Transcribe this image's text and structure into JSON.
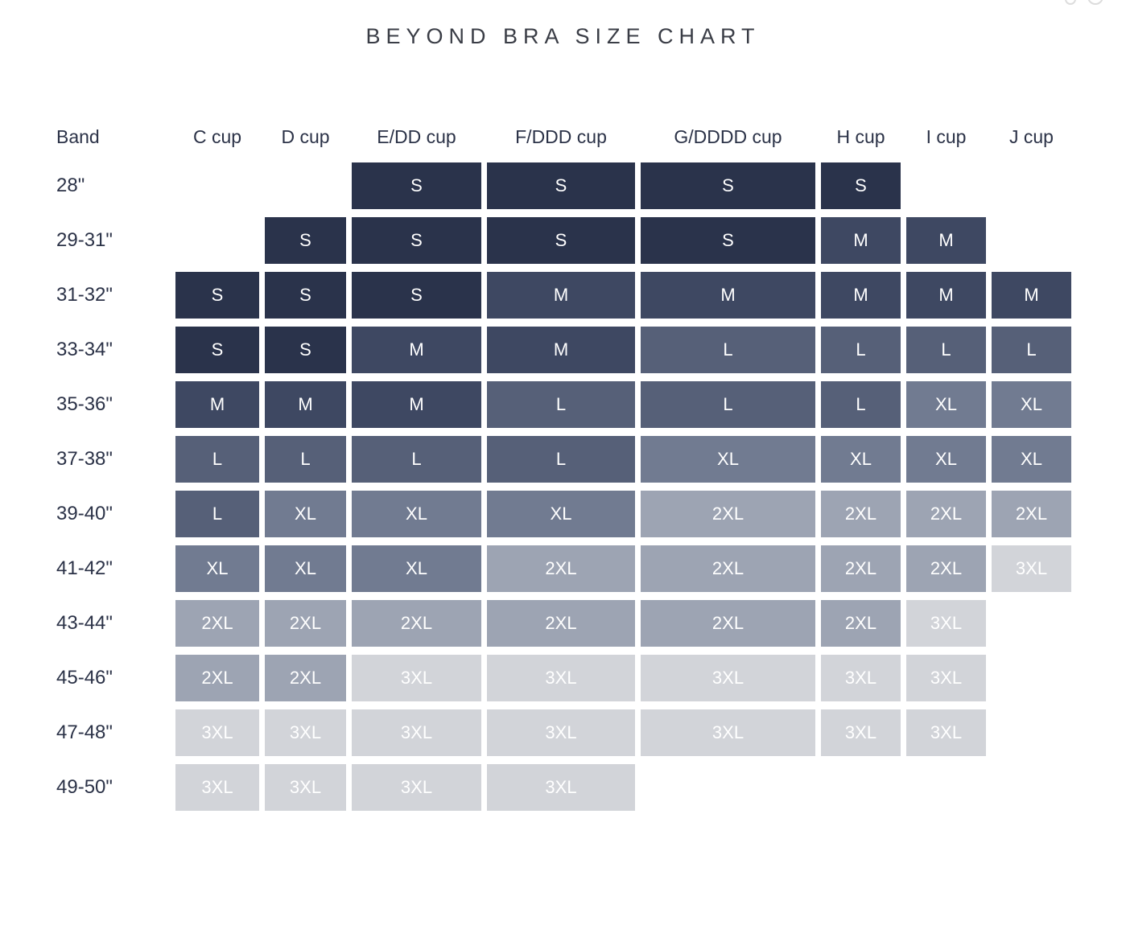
{
  "chart_data": {
    "type": "table",
    "title": "BEYOND BRA SIZE CHART",
    "columns": [
      "Band",
      "C cup",
      "D cup",
      "E/DD cup",
      "F/DDD cup",
      "G/DDDD cup",
      "H cup",
      "I cup",
      "J cup"
    ],
    "rows": [
      [
        "28\"",
        "",
        "",
        "S",
        "S",
        "S",
        "S",
        "",
        ""
      ],
      [
        "29-31\"",
        "",
        "S",
        "S",
        "S",
        "S",
        "M",
        "M",
        ""
      ],
      [
        "31-32\"",
        "S",
        "S",
        "S",
        "M",
        "M",
        "M",
        "M",
        "M"
      ],
      [
        "33-34\"",
        "S",
        "S",
        "M",
        "M",
        "L",
        "L",
        "L",
        "L"
      ],
      [
        "35-36\"",
        "M",
        "M",
        "M",
        "L",
        "L",
        "L",
        "XL",
        "XL"
      ],
      [
        "37-38\"",
        "L",
        "L",
        "L",
        "L",
        "XL",
        "XL",
        "XL",
        "XL"
      ],
      [
        "39-40\"",
        "L",
        "XL",
        "XL",
        "XL",
        "2XL",
        "2XL",
        "2XL",
        "2XL"
      ],
      [
        "41-42\"",
        "XL",
        "XL",
        "XL",
        "2XL",
        "2XL",
        "2XL",
        "2XL",
        "3XL"
      ],
      [
        "43-44\"",
        "2XL",
        "2XL",
        "2XL",
        "2XL",
        "2XL",
        "2XL",
        "3XL",
        ""
      ],
      [
        "45-46\"",
        "2XL",
        "2XL",
        "3XL",
        "3XL",
        "3XL",
        "3XL",
        "3XL",
        ""
      ],
      [
        "47-48\"",
        "3XL",
        "3XL",
        "3XL",
        "3XL",
        "3XL",
        "3XL",
        "3XL",
        ""
      ],
      [
        "49-50\"",
        "3XL",
        "3XL",
        "3XL",
        "3XL",
        "",
        "",
        "",
        ""
      ]
    ],
    "size_colors": {
      "S": "#2a334b",
      "M": "#3e4862",
      "L": "#566078",
      "XL": "#717b91",
      "2XL": "#9da4b3",
      "3XL": "#d2d4d9"
    },
    "cell_text_color": "#ffffff",
    "header_text_color": "#2b3247",
    "layout": {
      "grid": "on-white, gapped tiles",
      "legend_position": "none"
    }
  }
}
